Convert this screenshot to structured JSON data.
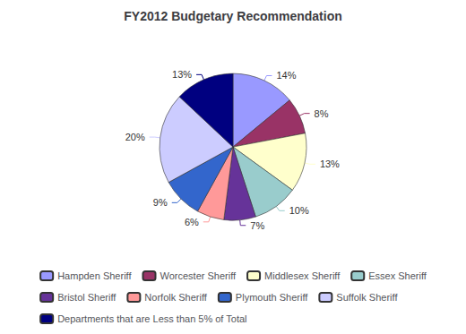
{
  "chart_data": {
    "type": "pie",
    "title": "FY2012 Budgetary Recommendation",
    "categories": [
      "Hampden Sheriff",
      "Worcester Sheriff",
      "Middlesex Sheriff",
      "Essex Sheriff",
      "Bristol Sheriff",
      "Norfolk Sheriff",
      "Plymouth Sheriff",
      "Suffolk Sheriff",
      "Departments that are Less than 5% of Total"
    ],
    "values": [
      14,
      8,
      13,
      10,
      7,
      6,
      9,
      20,
      13
    ],
    "value_labels": [
      "14%",
      "8%",
      "13%",
      "10%",
      "7%",
      "6%",
      "9%",
      "20%",
      "13%"
    ],
    "colors": [
      "#9999FF",
      "#993366",
      "#FFFFCC",
      "#99CCCC",
      "#663399",
      "#FF9999",
      "#3366CC",
      "#CCCCFF",
      "#000080"
    ],
    "data_labels": true,
    "legend": "bottom"
  }
}
